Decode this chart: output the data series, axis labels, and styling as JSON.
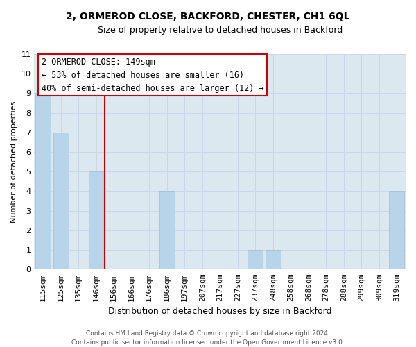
{
  "title": "2, ORMEROD CLOSE, BACKFORD, CHESTER, CH1 6QL",
  "subtitle": "Size of property relative to detached houses in Backford",
  "xlabel": "Distribution of detached houses by size in Backford",
  "ylabel": "Number of detached properties",
  "categories": [
    "115sqm",
    "125sqm",
    "135sqm",
    "146sqm",
    "156sqm",
    "166sqm",
    "176sqm",
    "186sqm",
    "197sqm",
    "207sqm",
    "217sqm",
    "227sqm",
    "237sqm",
    "248sqm",
    "258sqm",
    "268sqm",
    "278sqm",
    "288sqm",
    "299sqm",
    "309sqm",
    "319sqm"
  ],
  "values": [
    9,
    7,
    0,
    5,
    0,
    0,
    0,
    4,
    0,
    0,
    0,
    0,
    1,
    1,
    0,
    0,
    0,
    0,
    0,
    0,
    4
  ],
  "bar_color": "#b8d4e8",
  "bar_edge_color": "#a0bcd8",
  "vline_x": 3.5,
  "vline_color": "#cc0000",
  "ylim": [
    0,
    11
  ],
  "yticks": [
    0,
    1,
    2,
    3,
    4,
    5,
    6,
    7,
    8,
    9,
    10,
    11
  ],
  "annotation_title": "2 ORMEROD CLOSE: 149sqm",
  "annotation_line1": "← 53% of detached houses are smaller (16)",
  "annotation_line2": "40% of semi-detached houses are larger (12) →",
  "footer1": "Contains HM Land Registry data © Crown copyright and database right 2024.",
  "footer2": "Contains public sector information licensed under the Open Government Licence v3.0.",
  "grid_color": "#c8d8e8",
  "background_color": "#dce8f0",
  "title_fontsize": 10,
  "subtitle_fontsize": 9,
  "ylabel_fontsize": 8,
  "xlabel_fontsize": 9,
  "tick_fontsize": 8,
  "annotation_fontsize": 8.5
}
